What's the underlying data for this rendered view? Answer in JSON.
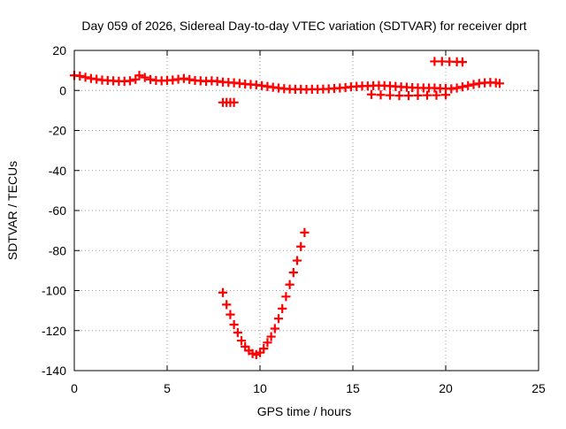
{
  "chart_data": {
    "type": "scatter",
    "title": "Day 059 of 2026, Sidereal Day-to-day VTEC variation (SDTVAR) for receiver dprt",
    "xlabel": "GPS time / hours",
    "ylabel": "SDTVAR / TECUs",
    "xlim": [
      0,
      25
    ],
    "ylim": [
      -140,
      20
    ],
    "xticks": [
      0,
      5,
      10,
      15,
      20,
      25
    ],
    "yticks": [
      -140,
      -120,
      -100,
      -80,
      -60,
      -40,
      -20,
      0,
      20
    ],
    "grid": true,
    "legend": "none",
    "colors": {
      "series": "#ff0000",
      "grid": "#a0a0a0",
      "axis": "#000000",
      "background": "#ffffff"
    },
    "series": [
      {
        "name": "main daily trace",
        "marker": "plus",
        "points": [
          [
            0.0,
            7.5
          ],
          [
            0.3,
            7.2
          ],
          [
            0.6,
            6.6
          ],
          [
            0.9,
            6.0
          ],
          [
            1.2,
            5.6
          ],
          [
            1.5,
            5.2
          ],
          [
            1.8,
            5.0
          ],
          [
            2.1,
            4.8
          ],
          [
            2.4,
            4.6
          ],
          [
            2.7,
            4.6
          ],
          [
            3.0,
            4.8
          ],
          [
            3.3,
            5.5
          ],
          [
            3.5,
            7.5
          ],
          [
            3.8,
            6.5
          ],
          [
            4.1,
            5.5
          ],
          [
            4.4,
            5.0
          ],
          [
            4.7,
            4.8
          ],
          [
            5.0,
            5.0
          ],
          [
            5.3,
            5.2
          ],
          [
            5.6,
            5.6
          ],
          [
            5.9,
            6.0
          ],
          [
            6.2,
            5.5
          ],
          [
            6.5,
            5.0
          ],
          [
            6.8,
            4.8
          ],
          [
            7.1,
            4.6
          ],
          [
            7.4,
            4.8
          ],
          [
            7.7,
            4.6
          ],
          [
            8.0,
            4.2
          ],
          [
            8.3,
            4.0
          ],
          [
            8.6,
            3.8
          ],
          [
            8.9,
            3.5
          ],
          [
            9.2,
            3.2
          ],
          [
            9.5,
            3.0
          ],
          [
            9.8,
            2.8
          ],
          [
            10.1,
            2.4
          ],
          [
            10.4,
            2.0
          ],
          [
            10.7,
            1.6
          ],
          [
            11.0,
            1.2
          ],
          [
            11.3,
            0.9
          ],
          [
            11.6,
            0.7
          ],
          [
            11.9,
            0.6
          ],
          [
            12.2,
            0.6
          ],
          [
            12.5,
            0.5
          ],
          [
            12.8,
            0.6
          ],
          [
            13.1,
            0.6
          ],
          [
            13.4,
            0.7
          ],
          [
            13.7,
            0.8
          ],
          [
            14.0,
            1.0
          ],
          [
            14.3,
            1.2
          ],
          [
            14.6,
            1.4
          ],
          [
            14.9,
            1.8
          ],
          [
            15.2,
            2.0
          ],
          [
            15.5,
            2.2
          ],
          [
            15.8,
            2.2
          ],
          [
            16.1,
            2.4
          ],
          [
            16.4,
            2.5
          ],
          [
            16.7,
            2.4
          ],
          [
            17.0,
            2.2
          ],
          [
            17.3,
            2.0
          ],
          [
            17.6,
            1.8
          ],
          [
            17.9,
            1.6
          ],
          [
            18.2,
            1.4
          ],
          [
            18.5,
            1.3
          ],
          [
            18.8,
            1.2
          ],
          [
            19.1,
            1.2
          ],
          [
            19.4,
            1.2
          ],
          [
            19.7,
            1.0
          ],
          [
            20.0,
            1.0
          ],
          [
            20.3,
            0.8
          ],
          [
            20.6,
            1.2
          ],
          [
            20.9,
            1.8
          ],
          [
            21.2,
            2.4
          ],
          [
            21.5,
            3.0
          ],
          [
            21.8,
            3.5
          ],
          [
            22.1,
            3.8
          ],
          [
            22.4,
            4.0
          ],
          [
            22.7,
            3.8
          ],
          [
            22.9,
            3.5
          ]
        ]
      },
      {
        "name": "secondary segment 16-20h",
        "marker": "plus",
        "points": [
          [
            16.0,
            -2.0
          ],
          [
            16.5,
            -2.2
          ],
          [
            17.0,
            -2.4
          ],
          [
            17.5,
            -2.6
          ],
          [
            18.0,
            -2.6
          ],
          [
            18.5,
            -2.5
          ],
          [
            19.0,
            -2.4
          ],
          [
            19.5,
            -2.4
          ],
          [
            20.0,
            -2.2
          ]
        ]
      },
      {
        "name": "short segment near 8h",
        "marker": "plus",
        "points": [
          [
            8.0,
            -6.0
          ],
          [
            8.2,
            -6.0
          ],
          [
            8.4,
            -6.0
          ],
          [
            8.6,
            -6.0
          ]
        ]
      },
      {
        "name": "short segment near 20h",
        "marker": "plus",
        "points": [
          [
            19.4,
            14.5
          ],
          [
            19.8,
            14.5
          ],
          [
            20.2,
            14.4
          ],
          [
            20.6,
            14.3
          ],
          [
            20.9,
            14.2
          ]
        ]
      },
      {
        "name": "dip 8-12.5h",
        "marker": "plus",
        "points": [
          [
            8.0,
            -101
          ],
          [
            8.2,
            -107
          ],
          [
            8.4,
            -112
          ],
          [
            8.6,
            -117
          ],
          [
            8.8,
            -121
          ],
          [
            9.0,
            -125
          ],
          [
            9.2,
            -128
          ],
          [
            9.4,
            -130
          ],
          [
            9.6,
            -131.5
          ],
          [
            9.8,
            -132
          ],
          [
            10.0,
            -131
          ],
          [
            10.2,
            -129
          ],
          [
            10.4,
            -126
          ],
          [
            10.6,
            -123
          ],
          [
            10.8,
            -119
          ],
          [
            11.0,
            -114
          ],
          [
            11.2,
            -109
          ],
          [
            11.4,
            -103
          ],
          [
            11.6,
            -97
          ],
          [
            11.8,
            -91
          ],
          [
            12.0,
            -85
          ],
          [
            12.2,
            -78
          ],
          [
            12.4,
            -71
          ]
        ]
      }
    ]
  }
}
